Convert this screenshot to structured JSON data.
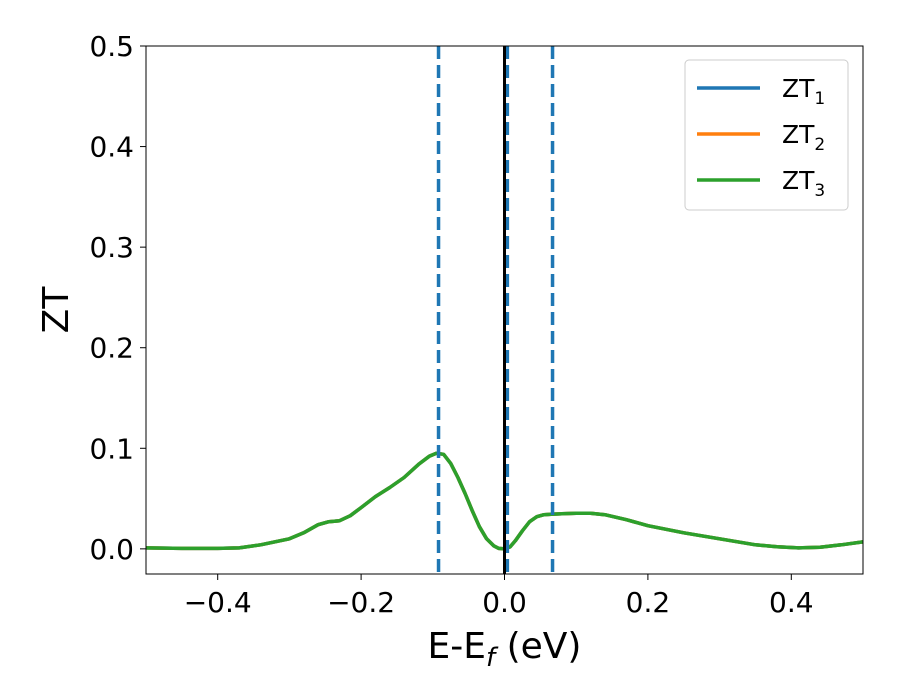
{
  "chart_data": {
    "type": "line",
    "title": "",
    "xlabel": "E-E",
    "xlabel_sub": "f",
    "xlabel_unit": " (eV)",
    "ylabel": "ZT",
    "xlim": [
      -0.5,
      0.5
    ],
    "ylim": [
      -0.025,
      0.5
    ],
    "xticks": [
      -0.4,
      -0.2,
      0.0,
      0.2,
      0.4
    ],
    "xtick_labels": [
      "−0.4",
      "−0.2",
      "0.0",
      "0.2",
      "0.4"
    ],
    "yticks": [
      0.0,
      0.1,
      0.2,
      0.3,
      0.4,
      0.5
    ],
    "ytick_labels": [
      "0.0",
      "0.1",
      "0.2",
      "0.3",
      "0.4",
      "0.5"
    ],
    "grid": false,
    "legend_position": "top-right",
    "x": [
      -0.5,
      -0.45,
      -0.4,
      -0.37,
      -0.34,
      -0.3,
      -0.28,
      -0.26,
      -0.245,
      -0.23,
      -0.215,
      -0.2,
      -0.18,
      -0.16,
      -0.14,
      -0.12,
      -0.105,
      -0.095,
      -0.085,
      -0.075,
      -0.065,
      -0.055,
      -0.045,
      -0.035,
      -0.025,
      -0.015,
      -0.008,
      0.0,
      0.008,
      0.015,
      0.025,
      0.035,
      0.045,
      0.055,
      0.065,
      0.08,
      0.1,
      0.12,
      0.14,
      0.17,
      0.2,
      0.25,
      0.3,
      0.35,
      0.38,
      0.41,
      0.44,
      0.47,
      0.5
    ],
    "series": [
      {
        "name": "ZT",
        "sub": "1",
        "color": "#1f77b4",
        "values": [
          0.001,
          0.0005,
          0.0005,
          0.001,
          0.004,
          0.01,
          0.016,
          0.024,
          0.027,
          0.028,
          0.033,
          0.041,
          0.052,
          0.061,
          0.071,
          0.084,
          0.092,
          0.095,
          0.094,
          0.085,
          0.071,
          0.055,
          0.038,
          0.022,
          0.01,
          0.003,
          0.0005,
          0.0,
          0.002,
          0.008,
          0.018,
          0.027,
          0.032,
          0.034,
          0.0345,
          0.035,
          0.0355,
          0.0355,
          0.034,
          0.029,
          0.023,
          0.016,
          0.01,
          0.004,
          0.002,
          0.001,
          0.0015,
          0.004,
          0.007
        ]
      },
      {
        "name": "ZT",
        "sub": "2",
        "color": "#ff7f0e",
        "values": [
          0.001,
          0.0005,
          0.0005,
          0.001,
          0.004,
          0.01,
          0.016,
          0.024,
          0.027,
          0.028,
          0.033,
          0.041,
          0.052,
          0.061,
          0.071,
          0.084,
          0.092,
          0.095,
          0.094,
          0.085,
          0.071,
          0.055,
          0.038,
          0.022,
          0.01,
          0.003,
          0.0005,
          0.0,
          0.002,
          0.008,
          0.018,
          0.027,
          0.032,
          0.034,
          0.0345,
          0.035,
          0.0355,
          0.0355,
          0.034,
          0.029,
          0.023,
          0.016,
          0.01,
          0.004,
          0.002,
          0.001,
          0.0015,
          0.004,
          0.007
        ]
      },
      {
        "name": "ZT",
        "sub": "3",
        "color": "#2ca02c",
        "values": [
          0.001,
          0.0005,
          0.0005,
          0.001,
          0.004,
          0.01,
          0.016,
          0.024,
          0.027,
          0.028,
          0.033,
          0.041,
          0.052,
          0.061,
          0.071,
          0.084,
          0.092,
          0.095,
          0.094,
          0.085,
          0.071,
          0.055,
          0.038,
          0.022,
          0.01,
          0.003,
          0.0005,
          0.0,
          0.002,
          0.008,
          0.018,
          0.027,
          0.032,
          0.034,
          0.0345,
          0.035,
          0.0355,
          0.0355,
          0.034,
          0.029,
          0.023,
          0.016,
          0.01,
          0.004,
          0.002,
          0.001,
          0.0015,
          0.004,
          0.007
        ]
      }
    ],
    "vlines": [
      {
        "x": -0.092,
        "color": "#1f77b4",
        "style": "dashed"
      },
      {
        "x": 0.004,
        "color": "#1f77b4",
        "style": "dashed"
      },
      {
        "x": 0.067,
        "color": "#1f77b4",
        "style": "dashed"
      },
      {
        "x": 0.0,
        "color": "#000000",
        "style": "solid"
      }
    ]
  }
}
